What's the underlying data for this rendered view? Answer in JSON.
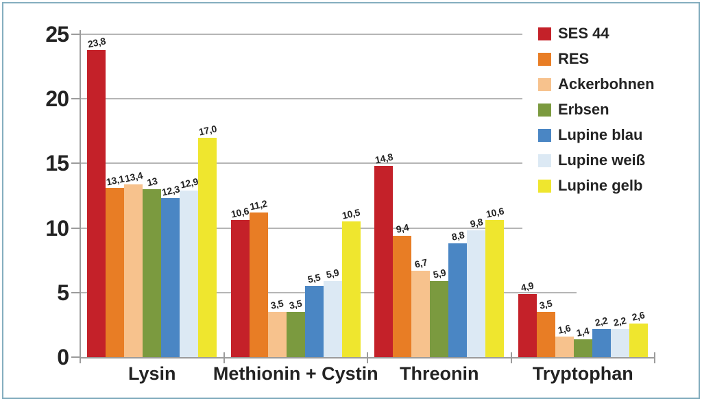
{
  "colors": {
    "border": "#85aebf",
    "axis": "#9b9b9b",
    "grid": "#b5b5b5",
    "text": "#232323",
    "background": "#ffffff"
  },
  "chart_data": {
    "type": "bar",
    "title": "",
    "xlabel": "",
    "ylabel": "",
    "categories": [
      "Lysin",
      "Methionin + Cystin",
      "Threonin",
      "Tryptophan"
    ],
    "y_tick_labels": [
      "0",
      "5",
      "10",
      "15",
      "20",
      "25"
    ],
    "y_ticks": [
      0,
      5,
      10,
      15,
      20,
      25
    ],
    "ylim": [
      0,
      25
    ],
    "grid": true,
    "legend_position": "top-right",
    "series": [
      {
        "name": "SES 44",
        "color": "#c42129",
        "values": [
          23.8,
          10.6,
          14.8,
          4.9
        ],
        "labels": [
          "23,8",
          "10,6",
          "14,8",
          "4,9"
        ]
      },
      {
        "name": "RES",
        "color": "#e87d25",
        "values": [
          13.1,
          11.2,
          9.4,
          3.5
        ],
        "labels": [
          "13,1",
          "11,2",
          "9,4",
          "3,5"
        ]
      },
      {
        "name": "Ackerbohnen",
        "color": "#f7c28d",
        "values": [
          13.4,
          3.5,
          6.7,
          1.6
        ],
        "labels": [
          "13,4",
          "3,5",
          "6,7",
          "1,6"
        ]
      },
      {
        "name": "Erbsen",
        "color": "#7b9a3f",
        "values": [
          13,
          3.5,
          5.9,
          1.4
        ],
        "labels": [
          "13",
          "3,5",
          "5,9",
          "1,4"
        ]
      },
      {
        "name": "Lupine blau",
        "color": "#4a86c4",
        "values": [
          12.3,
          5.5,
          8.8,
          2.2
        ],
        "labels": [
          "12,3",
          "5,5",
          "8,8",
          "2,2"
        ]
      },
      {
        "name": "Lupine weiß",
        "color": "#dce9f4",
        "values": [
          12.9,
          5.9,
          9.8,
          2.2
        ],
        "labels": [
          "12,9",
          "5,9",
          "9,8",
          "2,2"
        ]
      },
      {
        "name": "Lupine gelb",
        "color": "#efe62e",
        "values": [
          17.0,
          10.5,
          10.6,
          2.6
        ],
        "labels": [
          "17,0",
          "10,5",
          "10,6",
          "2,6"
        ]
      }
    ]
  }
}
